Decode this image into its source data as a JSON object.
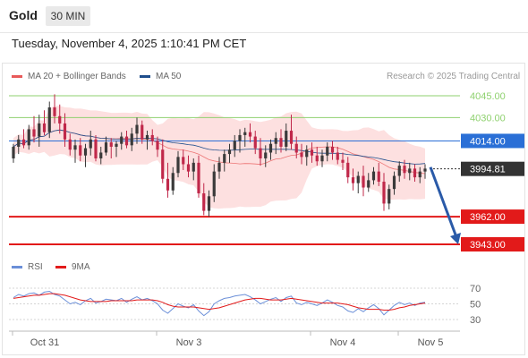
{
  "header": {
    "symbol": "Gold",
    "interval": "30 MIN",
    "datetime": "Tuesday, November 4, 2025 1:10:41 PM CET"
  },
  "legend": {
    "ma20_label": "MA 20 + Bollinger Bands",
    "ma50_label": "MA 50",
    "credit": "Research © 2025 Trading Central",
    "rsi_label": "RSI",
    "ma9_label": "9MA"
  },
  "colors": {
    "up_candle": "#3a3a3a",
    "down_candle": "#c0284a",
    "ma20": "#e85a5a",
    "bollinger_fill": "#fde0e0",
    "ma50": "#1f4e8c",
    "resistance": "#8fd16f",
    "pivot": "#2a6fd6",
    "support": "#e21a1a",
    "current": "#333333",
    "arrow": "#2a5aa8",
    "rsi": "#6b8fd8",
    "rsi_ma": "#e21a1a"
  },
  "chart_data": {
    "type": "candlestick",
    "title": "Gold",
    "timeframe": "30 MIN",
    "x_labels": [
      "Oct 31",
      "Nov 3",
      "Nov 4",
      "Nov 5"
    ],
    "ylim": [
      3935,
      4055
    ],
    "levels": [
      {
        "label": "4045.00",
        "value": 4045.0,
        "kind": "resistance"
      },
      {
        "label": "4030.00",
        "value": 4030.0,
        "kind": "resistance"
      },
      {
        "label": "4014.00",
        "value": 4014.0,
        "kind": "pivot"
      },
      {
        "label": "3994.81",
        "value": 3994.81,
        "kind": "current"
      },
      {
        "label": "3962.00",
        "value": 3962.0,
        "kind": "support"
      },
      {
        "label": "3943.00",
        "value": 3943.0,
        "kind": "support"
      }
    ],
    "projection": {
      "from": 3996,
      "to": 3943
    },
    "candles": [
      [
        4002,
        4012,
        3999,
        4010
      ],
      [
        4010,
        4018,
        4005,
        4015
      ],
      [
        4015,
        4022,
        4009,
        4011
      ],
      [
        4011,
        4025,
        4008,
        4022
      ],
      [
        4022,
        4031,
        4013,
        4017
      ],
      [
        4017,
        4032,
        4010,
        4026
      ],
      [
        4026,
        4035,
        4018,
        4020
      ],
      [
        4020,
        4041,
        4016,
        4037
      ],
      [
        4037,
        4046,
        4026,
        4031
      ],
      [
        4031,
        4039,
        4019,
        4026
      ],
      [
        4026,
        4033,
        4010,
        4015
      ],
      [
        4015,
        4019,
        4004,
        4008
      ],
      [
        4008,
        4015,
        3999,
        4011
      ],
      [
        4011,
        4016,
        4000,
        4004
      ],
      [
        4004,
        4012,
        3996,
        4009
      ],
      [
        4009,
        4021,
        4004,
        4015
      ],
      [
        4015,
        4018,
        4000,
        4002
      ],
      [
        4002,
        4010,
        3998,
        4006
      ],
      [
        4006,
        4017,
        4004,
        4013
      ],
      [
        4013,
        4016,
        4002,
        4010
      ],
      [
        4010,
        4014,
        4003,
        4012
      ],
      [
        4012,
        4020,
        4008,
        4017
      ],
      [
        4017,
        4021,
        4009,
        4011
      ],
      [
        4011,
        4023,
        4007,
        4019
      ],
      [
        4019,
        4030,
        4012,
        4025
      ],
      [
        4025,
        4028,
        4012,
        4015
      ],
      [
        4015,
        4021,
        4008,
        4018
      ],
      [
        4018,
        4022,
        4011,
        4014
      ],
      [
        4014,
        4017,
        4003,
        4008
      ],
      [
        4008,
        4015,
        3985,
        3988
      ],
      [
        3988,
        3999,
        3975,
        3980
      ],
      [
        3980,
        3996,
        3977,
        3992
      ],
      [
        3992,
        4007,
        3989,
        4003
      ],
      [
        4003,
        4008,
        3994,
        3998
      ],
      [
        3998,
        4004,
        3989,
        3993
      ],
      [
        3993,
        4002,
        3987,
        3999
      ],
      [
        3999,
        4004,
        3975,
        3978
      ],
      [
        3978,
        3985,
        3963,
        3966
      ],
      [
        3966,
        3980,
        3962,
        3976
      ],
      [
        3976,
        3998,
        3972,
        3993
      ],
      [
        3993,
        4003,
        3988,
        3999
      ],
      [
        3999,
        4008,
        3993,
        4005
      ],
      [
        4005,
        4012,
        3999,
        4008
      ],
      [
        4008,
        4018,
        4003,
        4014
      ],
      [
        4014,
        4022,
        4006,
        4018
      ],
      [
        4018,
        4023,
        4010,
        4020
      ],
      [
        4020,
        4026,
        4013,
        4017
      ],
      [
        4017,
        4021,
        4005,
        4009
      ],
      [
        4009,
        4016,
        3997,
        4002
      ],
      [
        4002,
        4011,
        3996,
        4006
      ],
      [
        4006,
        4015,
        4001,
        4012
      ],
      [
        4012,
        4020,
        4005,
        4016
      ],
      [
        4016,
        4022,
        4006,
        4010
      ],
      [
        4010,
        4026,
        4007,
        4021
      ],
      [
        4021,
        4032,
        4008,
        4012
      ],
      [
        4012,
        4017,
        4002,
        4006
      ],
      [
        4006,
        4012,
        3998,
        4003
      ],
      [
        4003,
        4011,
        3997,
        4008
      ],
      [
        4008,
        4013,
        3999,
        4004
      ],
      [
        4004,
        4010,
        3997,
        4000
      ],
      [
        4000,
        4008,
        3996,
        4004
      ],
      [
        4004,
        4013,
        4000,
        4010
      ],
      [
        4010,
        4014,
        4001,
        4006
      ],
      [
        4006,
        4010,
        3998,
        4001
      ],
      [
        4001,
        4006,
        3994,
        3999
      ],
      [
        3999,
        4003,
        3985,
        3989
      ],
      [
        3989,
        3995,
        3980,
        3985
      ],
      [
        3985,
        3993,
        3978,
        3990
      ],
      [
        3990,
        3997,
        3976,
        3982
      ],
      [
        3982,
        3992,
        3979,
        3987
      ],
      [
        3987,
        3996,
        3984,
        3993
      ],
      [
        3993,
        3999,
        3983,
        3986
      ],
      [
        3986,
        3992,
        3966,
        3971
      ],
      [
        3971,
        3984,
        3967,
        3981
      ],
      [
        3981,
        3993,
        3977,
        3990
      ],
      [
        3990,
        4000,
        3986,
        3997
      ],
      [
        3997,
        4001,
        3988,
        3992
      ],
      [
        3992,
        3999,
        3987,
        3995
      ],
      [
        3995,
        3998,
        3986,
        3989
      ],
      [
        3989,
        3996,
        3985,
        3993
      ],
      [
        3993,
        3998,
        3988,
        3995
      ]
    ],
    "rsi_axis": [
      70,
      50,
      30
    ],
    "rsi": [
      58,
      62,
      60,
      63,
      64,
      61,
      65,
      66,
      62,
      60,
      55,
      50,
      52,
      49,
      54,
      57,
      51,
      53,
      56,
      55,
      54,
      57,
      52,
      56,
      59,
      55,
      57,
      54,
      50,
      42,
      38,
      44,
      50,
      47,
      45,
      49,
      41,
      35,
      40,
      50,
      54,
      57,
      58,
      60,
      61,
      62,
      59,
      55,
      50,
      53,
      56,
      58,
      53,
      58,
      60,
      51,
      49,
      52,
      50,
      48,
      51,
      55,
      52,
      48,
      46,
      41,
      39,
      44,
      40,
      45,
      49,
      44,
      36,
      42,
      48,
      52,
      49,
      51,
      48,
      51,
      52
    ],
    "rsi_ma": [
      57,
      58,
      59,
      60,
      61,
      61,
      62,
      63,
      63,
      62,
      61,
      59,
      57,
      55,
      54,
      53,
      53,
      53,
      53,
      54,
      54,
      54,
      54,
      54,
      55,
      55,
      55,
      55,
      54,
      52,
      49,
      47,
      46,
      46,
      46,
      46,
      45,
      44,
      43,
      44,
      45,
      47,
      49,
      51,
      53,
      55,
      56,
      57,
      57,
      56,
      55,
      55,
      55,
      56,
      57,
      56,
      55,
      54,
      53,
      52,
      51,
      51,
      51,
      51,
      50,
      49,
      47,
      45,
      44,
      43,
      43,
      43,
      42,
      42,
      43,
      45,
      46,
      48,
      49,
      50,
      51
    ]
  }
}
